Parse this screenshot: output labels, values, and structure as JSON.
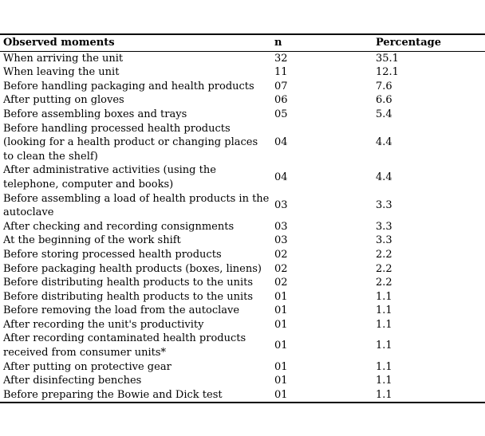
{
  "chart_data": {
    "type": "table",
    "columns": [
      "Observed moments",
      "n",
      "Percentage"
    ],
    "rows": [
      [
        "When arriving the unit",
        "32",
        "35.1"
      ],
      [
        "When leaving the unit",
        "11",
        "12.1"
      ],
      [
        "Before handling packaging and health products",
        "07",
        "7.6"
      ],
      [
        "After putting on gloves",
        "06",
        "6.6"
      ],
      [
        "Before assembling boxes and trays",
        "05",
        "5.4"
      ],
      [
        "Before handling processed health products (looking for a health product or changing places to clean the shelf)",
        "04",
        "4.4"
      ],
      [
        "After administrative activities (using the telephone, computer and books)",
        "04",
        "4.4"
      ],
      [
        "Before assembling a load of health products in the autoclave",
        "03",
        "3.3"
      ],
      [
        "After checking and recording consignments",
        "03",
        "3.3"
      ],
      [
        "At the beginning of the work shift",
        "03",
        "3.3"
      ],
      [
        "Before storing processed health products",
        "02",
        "2.2"
      ],
      [
        "Before packaging health products (boxes, linens)",
        "02",
        "2.2"
      ],
      [
        "Before distributing health products to the units",
        "02",
        "2.2"
      ],
      [
        "Before distributing health products to the units",
        "01",
        "1.1"
      ],
      [
        "Before removing the load from the autoclave",
        "01",
        "1.1"
      ],
      [
        "After recording the unit's productivity",
        "01",
        "1.1"
      ],
      [
        "After recording contaminated health products received from consumer units*",
        "01",
        "1.1"
      ],
      [
        "After putting on protective gear",
        "01",
        "1.1"
      ],
      [
        "After disinfecting benches",
        "01",
        "1.1"
      ],
      [
        "Before preparing the Bowie and Dick test",
        "01",
        "1.1"
      ]
    ]
  }
}
